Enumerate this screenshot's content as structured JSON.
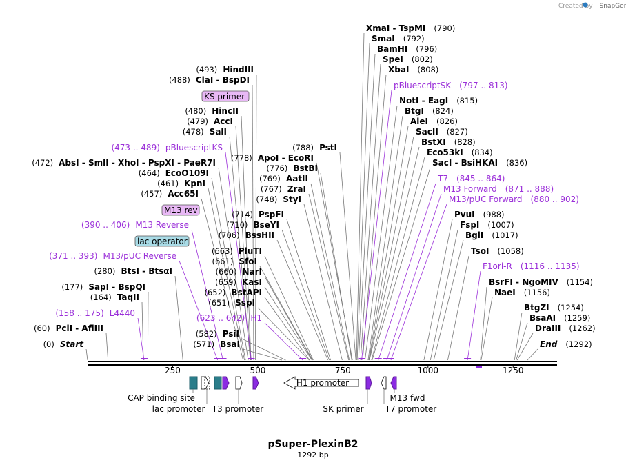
{
  "credit": "Created by",
  "credit_brand": "SnapGene",
  "title": "pSuper-PlexinB2",
  "length": "1292 bp",
  "sequence_length": 1292,
  "axis_ticks": [
    {
      "value": 250,
      "label": "250"
    },
    {
      "value": 500,
      "label": "500"
    },
    {
      "value": 750,
      "label": "750"
    },
    {
      "value": 1000,
      "label": "1000"
    },
    {
      "value": 1250,
      "label": "1250"
    }
  ],
  "tags": {
    "ks_primer": "KS primer",
    "m13_rev": "M13 rev",
    "lac_operator": "lac operator"
  },
  "features": {
    "cap_binding_site": "CAP binding site",
    "lac_promoter": "lac promoter",
    "t3_promoter": "T3 promoter",
    "h1_promoter": "H1 promoter",
    "sk_primer": "SK primer",
    "m13_fwd": "M13 fwd",
    "t7_promoter": "T7 promoter"
  },
  "left_labels": [
    {
      "pos": "(493)",
      "text": "HindIII",
      "site": 493,
      "kind": "enzyme"
    },
    {
      "pos": "(488)",
      "text": "ClaI  -  BspDI",
      "site": 488,
      "kind": "enzyme"
    },
    {
      "pos": "(480)",
      "text": "HincII",
      "site": 480,
      "kind": "enzyme"
    },
    {
      "pos": "(479)",
      "text": "AccI",
      "site": 479,
      "kind": "enzyme"
    },
    {
      "pos": "(478)",
      "text": "SalI",
      "site": 478,
      "kind": "enzyme"
    },
    {
      "pos": "(473 .. 489)",
      "text": "pBluescriptKS",
      "site": 481,
      "kind": "primer"
    },
    {
      "pos": "(472)",
      "text": "AbsI  -  SmlI  -  XhoI  -  PspXI  -  PaeR7I",
      "site": 472,
      "kind": "enzyme"
    },
    {
      "pos": "(464)",
      "text": "EcoO109I",
      "site": 464,
      "kind": "enzyme"
    },
    {
      "pos": "(461)",
      "text": "KpnI",
      "site": 461,
      "kind": "enzyme"
    },
    {
      "pos": "(457)",
      "text": "Acc65I",
      "site": 457,
      "kind": "enzyme"
    },
    {
      "pos": "(390 .. 406)",
      "text": "M13 Reverse",
      "site": 398,
      "kind": "primer"
    },
    {
      "pos": "(371 .. 393)",
      "text": "M13/pUC Reverse",
      "site": 382,
      "kind": "primer"
    },
    {
      "pos": "(280)",
      "text": "BtsI  -  BtsαI",
      "site": 280,
      "kind": "enzyme"
    },
    {
      "pos": "(177)",
      "text": "SapI  -  BspQI",
      "site": 177,
      "kind": "enzyme"
    },
    {
      "pos": "(164)",
      "text": "TaqII",
      "site": 164,
      "kind": "enzyme"
    },
    {
      "pos": "(158 .. 175)",
      "text": "L4440",
      "site": 166,
      "kind": "primer"
    },
    {
      "pos": "(60)",
      "text": "PciI  -  AflIII",
      "site": 60,
      "kind": "enzyme"
    },
    {
      "pos": "(0)",
      "text": "Start",
      "site": 0,
      "kind": "start"
    }
  ],
  "mid_labels": [
    {
      "pos": "(778)",
      "text": "ApoI  -  EcoRI",
      "site": 778,
      "kind": "enzyme"
    },
    {
      "pos": "(788)",
      "text": "PstI",
      "site": 788,
      "kind": "enzyme"
    },
    {
      "pos": "(776)",
      "text": "BstBI",
      "site": 776,
      "kind": "enzyme"
    },
    {
      "pos": "(769)",
      "text": "AatII",
      "site": 769,
      "kind": "enzyme"
    },
    {
      "pos": "(767)",
      "text": "ZraI",
      "site": 767,
      "kind": "enzyme"
    },
    {
      "pos": "(748)",
      "text": "StyI",
      "site": 748,
      "kind": "enzyme"
    },
    {
      "pos": "(714)",
      "text": "PspFI",
      "site": 714,
      "kind": "enzyme"
    },
    {
      "pos": "(710)",
      "text": "BseYI",
      "site": 710,
      "kind": "enzyme"
    },
    {
      "pos": "(706)",
      "text": "BssHII",
      "site": 706,
      "kind": "enzyme"
    },
    {
      "pos": "(663)",
      "text": "PluTI",
      "site": 663,
      "kind": "enzyme"
    },
    {
      "pos": "(661)",
      "text": "SfoI",
      "site": 661,
      "kind": "enzyme"
    },
    {
      "pos": "(660)",
      "text": "NarI",
      "site": 660,
      "kind": "enzyme"
    },
    {
      "pos": "(659)",
      "text": "KasI",
      "site": 659,
      "kind": "enzyme"
    },
    {
      "pos": "(652)",
      "text": "BstAPI",
      "site": 652,
      "kind": "enzyme"
    },
    {
      "pos": "(651)",
      "text": "SspI",
      "site": 651,
      "kind": "enzyme"
    },
    {
      "pos": "(623 .. 642)",
      "text": "H1",
      "site": 632,
      "kind": "primer"
    },
    {
      "pos": "(582)",
      "text": "PsiI",
      "site": 582,
      "kind": "enzyme"
    },
    {
      "pos": "(571)",
      "text": "BsaI",
      "site": 571,
      "kind": "enzyme"
    }
  ],
  "right_labels": [
    {
      "pos": "(790)",
      "text": "XmaI  -  TspMI",
      "site": 790,
      "kind": "enzyme"
    },
    {
      "pos": "(792)",
      "text": "SmaI",
      "site": 792,
      "kind": "enzyme"
    },
    {
      "pos": "(796)",
      "text": "BamHI",
      "site": 796,
      "kind": "enzyme"
    },
    {
      "pos": "(802)",
      "text": "SpeI",
      "site": 802,
      "kind": "enzyme"
    },
    {
      "pos": "(808)",
      "text": "XbaI",
      "site": 808,
      "kind": "enzyme"
    },
    {
      "pos": "(797 .. 813)",
      "text": "pBluescriptSK",
      "site": 805,
      "kind": "primer"
    },
    {
      "pos": "(815)",
      "text": "NotI  -  EagI",
      "site": 815,
      "kind": "enzyme"
    },
    {
      "pos": "(824)",
      "text": "BtgI",
      "site": 824,
      "kind": "enzyme"
    },
    {
      "pos": "(826)",
      "text": "AleI",
      "site": 826,
      "kind": "enzyme"
    },
    {
      "pos": "(827)",
      "text": "SacII",
      "site": 827,
      "kind": "enzyme"
    },
    {
      "pos": "(828)",
      "text": "BstXI",
      "site": 828,
      "kind": "enzyme"
    },
    {
      "pos": "(834)",
      "text": "Eco53kI",
      "site": 834,
      "kind": "enzyme"
    },
    {
      "pos": "(836)",
      "text": "SacI  -  BsiHKAI",
      "site": 836,
      "kind": "enzyme"
    },
    {
      "pos": "(845 .. 864)",
      "text": "T7",
      "site": 854,
      "kind": "primer"
    },
    {
      "pos": "(871 .. 888)",
      "text": "M13 Forward",
      "site": 879,
      "kind": "primer"
    },
    {
      "pos": "(880 .. 902)",
      "text": "M13/pUC Forward",
      "site": 891,
      "kind": "primer"
    },
    {
      "pos": "(988)",
      "text": "PvuI",
      "site": 988,
      "kind": "enzyme"
    },
    {
      "pos": "(1007)",
      "text": "FspI",
      "site": 1007,
      "kind": "enzyme"
    },
    {
      "pos": "(1017)",
      "text": "BglI",
      "site": 1017,
      "kind": "enzyme"
    },
    {
      "pos": "(1058)",
      "text": "TsoI",
      "site": 1058,
      "kind": "enzyme"
    },
    {
      "pos": "(1116 .. 1135)",
      "text": "F1ori-R",
      "site": 1116,
      "kind": "primer"
    },
    {
      "pos": "(1154)",
      "text": "BsrFI  -  NgoMIV",
      "site": 1154,
      "kind": "enzyme"
    },
    {
      "pos": "(1156)",
      "text": "NaeI",
      "site": 1156,
      "kind": "enzyme"
    },
    {
      "pos": "(1254)",
      "text": "BtgZI",
      "site": 1254,
      "kind": "enzyme"
    },
    {
      "pos": "(1259)",
      "text": "BsaAI",
      "site": 1259,
      "kind": "enzyme"
    },
    {
      "pos": "(1262)",
      "text": "DraIII",
      "site": 1262,
      "kind": "enzyme"
    },
    {
      "pos": "(1292)",
      "text": "End",
      "site": 1292,
      "kind": "end"
    }
  ],
  "colors": {
    "primer": "#9b30d9",
    "enzyme": "#000000",
    "leader": "#777777",
    "feature_teal": "#2a7d8a",
    "feature_purple": "#8b2be2"
  }
}
